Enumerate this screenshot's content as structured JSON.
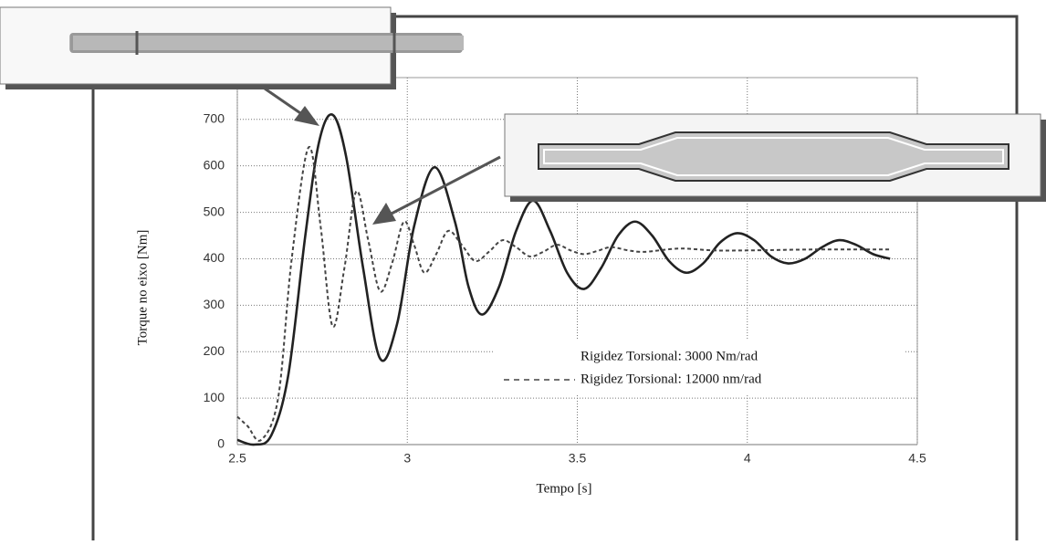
{
  "chart_data": {
    "type": "line",
    "x_label": "Tempo [s]",
    "y_label": "Torque no eixo [Nm]",
    "xlim": [
      2.5,
      4.5
    ],
    "xticks": [
      2.5,
      3,
      3.5,
      4,
      4.5
    ],
    "ylim": [
      0,
      790
    ],
    "yticks": [
      0,
      100,
      200,
      300,
      400,
      500,
      600,
      700
    ],
    "grid": true,
    "series": [
      {
        "name": "Rigidez Torsional: 3000 Nm/rad",
        "color": "#222222",
        "style": "solid",
        "x": [
          2.5,
          2.55,
          2.6,
          2.65,
          2.7,
          2.74,
          2.78,
          2.82,
          2.87,
          2.92,
          2.97,
          3.02,
          3.08,
          3.14,
          3.18,
          3.22,
          3.27,
          3.32,
          3.37,
          3.42,
          3.47,
          3.52,
          3.57,
          3.62,
          3.67,
          3.72,
          3.77,
          3.82,
          3.87,
          3.92,
          3.97,
          4.02,
          4.07,
          4.12,
          4.17,
          4.22,
          4.27,
          4.32,
          4.37,
          4.42
        ],
        "values": [
          10,
          0,
          20,
          150,
          450,
          650,
          710,
          620,
          380,
          185,
          260,
          470,
          597,
          480,
          340,
          280,
          340,
          460,
          525,
          460,
          370,
          335,
          380,
          450,
          480,
          450,
          395,
          370,
          390,
          435,
          455,
          440,
          405,
          390,
          400,
          425,
          440,
          430,
          410,
          400
        ]
      },
      {
        "name": "Rigidez Torsional: 12000 nm/rad",
        "color": "#444444",
        "style": "dashed",
        "x": [
          2.5,
          2.53,
          2.57,
          2.62,
          2.66,
          2.71,
          2.745,
          2.78,
          2.815,
          2.85,
          2.885,
          2.92,
          2.955,
          2.99,
          3.02,
          3.05,
          3.085,
          3.12,
          3.16,
          3.2,
          3.24,
          3.28,
          3.32,
          3.36,
          3.4,
          3.44,
          3.48,
          3.52,
          3.56,
          3.6,
          3.65,
          3.7,
          3.8,
          3.9,
          4.0,
          4.2,
          4.42
        ],
        "values": [
          60,
          40,
          10,
          100,
          400,
          640,
          470,
          255,
          380,
          545,
          440,
          330,
          390,
          480,
          430,
          370,
          410,
          460,
          430,
          395,
          415,
          440,
          425,
          405,
          415,
          430,
          418,
          410,
          417,
          425,
          418,
          415,
          422,
          418,
          418,
          420,
          420
        ]
      }
    ]
  }
}
